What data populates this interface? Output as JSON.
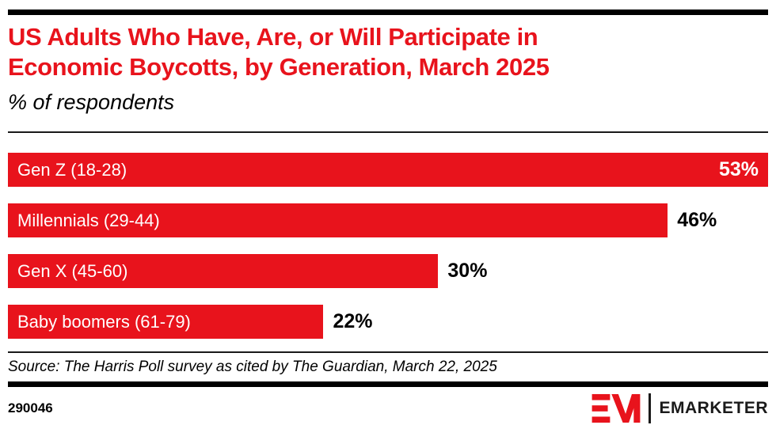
{
  "header": {
    "title_lines": [
      "US Adults Who Have, Are, or Will Participate in",
      "Economic Boycotts, by Generation, March 2025"
    ],
    "subtitle": "% of respondents"
  },
  "chart_data": {
    "type": "bar",
    "orientation": "horizontal",
    "title": "US Adults Who Have, Are, or Will Participate in Economic Boycotts, by Generation, March 2025",
    "subtitle": "% of respondents",
    "categories": [
      "Gen Z (18-28)",
      "Millennials (29-44)",
      "Gen X (45-60)",
      "Baby boomers (61-79)"
    ],
    "values": [
      53,
      46,
      30,
      22
    ],
    "value_labels": [
      "53%",
      "46%",
      "30%",
      "22%"
    ],
    "xlim": [
      0,
      53
    ],
    "grid": false,
    "bar_color": "#e8131c",
    "category_label_position": "inside-left",
    "value_label_rule": "inside right for max bar, outside right otherwise"
  },
  "footer": {
    "source": "Source: The Harris Poll survey as cited by The Guardian, March 22, 2025",
    "chart_id": "290046",
    "brand": "EMARKETER"
  },
  "colors": {
    "accent_red": "#e8131c",
    "rule_black": "#000000",
    "background": "#ffffff"
  }
}
